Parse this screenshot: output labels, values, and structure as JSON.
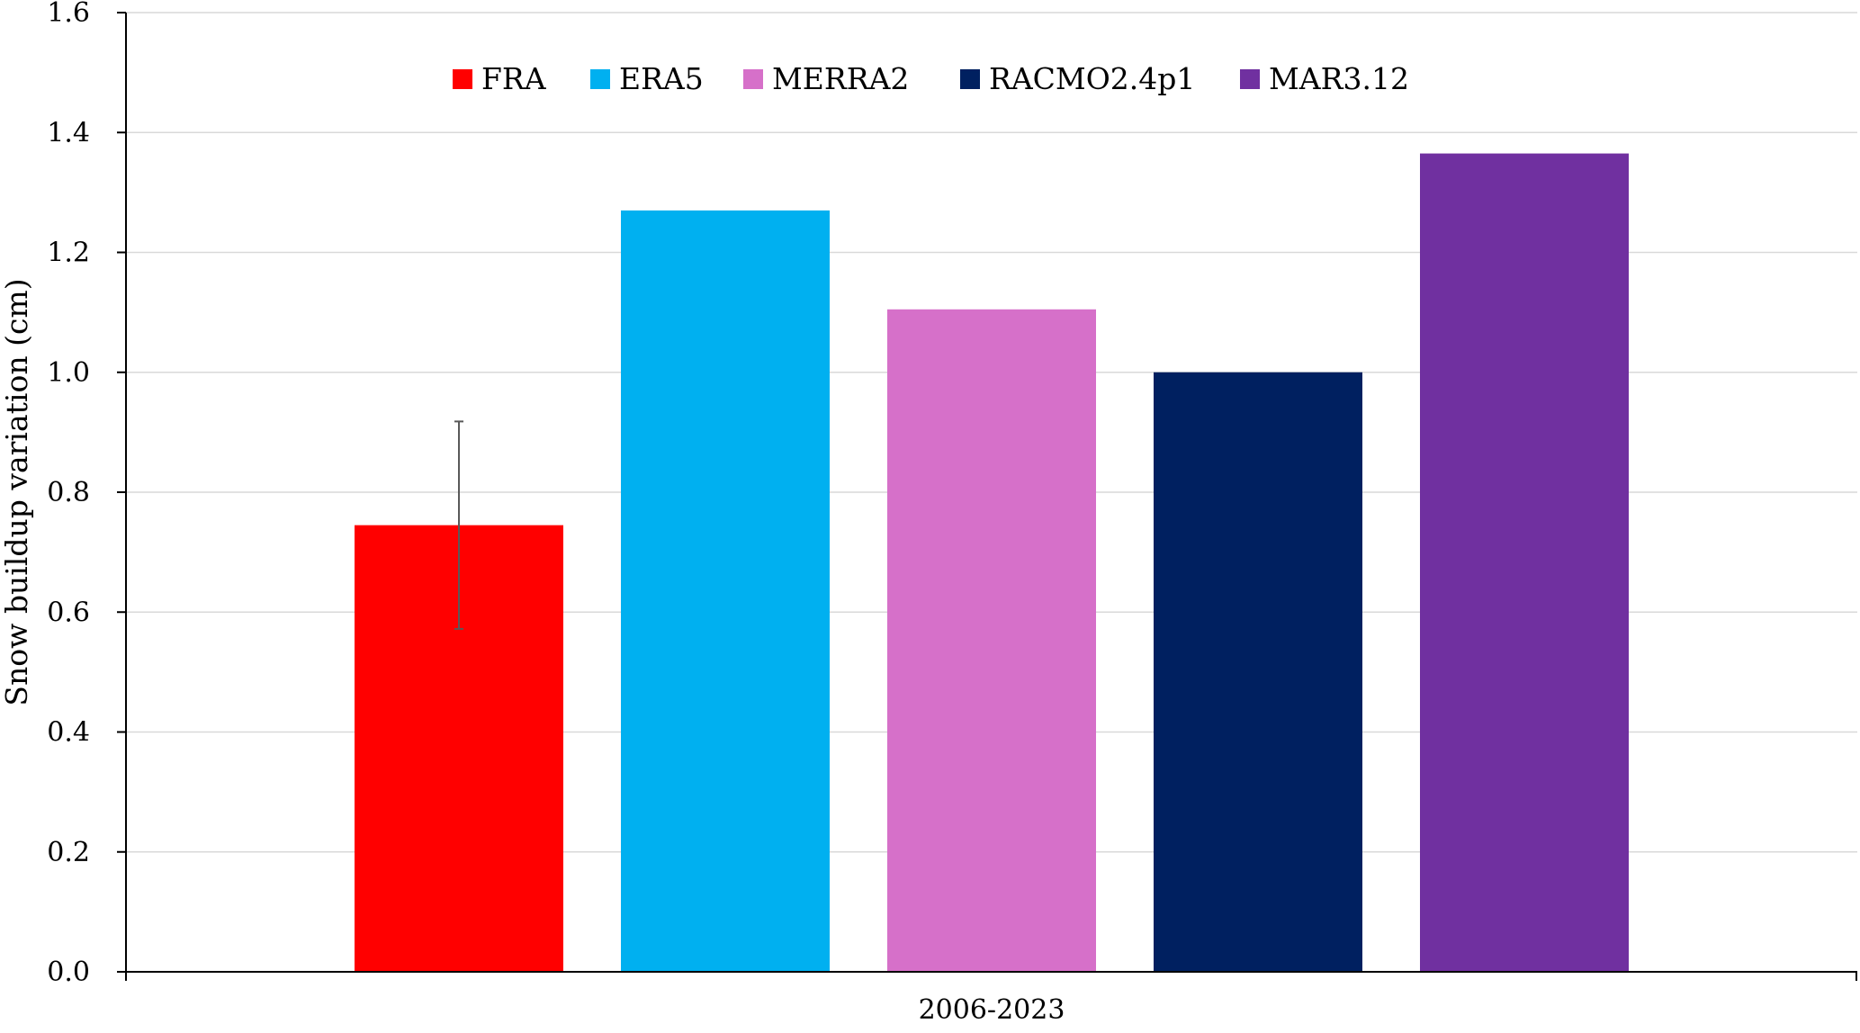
{
  "chart_data": {
    "type": "bar",
    "title": "",
    "xlabel": "",
    "ylabel": "Snow buildup variation (cm)",
    "categories": [
      "2006-2023"
    ],
    "series": [
      {
        "name": "FRA",
        "values": [
          0.745
        ],
        "color": "#ff0000",
        "error": {
          "low": 0.572,
          "high": 0.918
        }
      },
      {
        "name": "ERA5",
        "values": [
          1.27
        ],
        "color": "#00b0f0"
      },
      {
        "name": "MERRA2",
        "values": [
          1.105
        ],
        "color": "#d670c9"
      },
      {
        "name": "RACMO2.4p1",
        "values": [
          1.0
        ],
        "color": "#002060"
      },
      {
        "name": "MAR3.12",
        "values": [
          1.365
        ],
        "color": "#7030a0"
      }
    ],
    "ylim": [
      0,
      1.6
    ],
    "yticks": [
      "0.0",
      "0.2",
      "0.4",
      "0.6",
      "0.8",
      "1.0",
      "1.2",
      "1.4",
      "1.6"
    ],
    "grid": true,
    "legend_position": "top-center"
  }
}
